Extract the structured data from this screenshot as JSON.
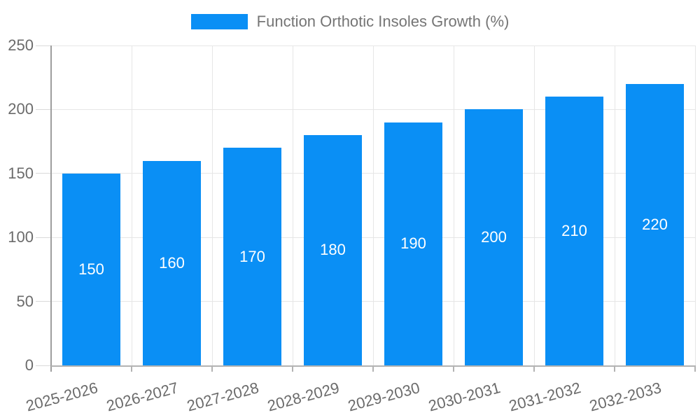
{
  "chart_data": {
    "type": "bar",
    "title": "",
    "legend": "Function Orthotic Insoles Growth (%)",
    "legend_position": "top",
    "categories": [
      "2025-2026",
      "2026-2027",
      "2027-2028",
      "2028-2029",
      "2029-2030",
      "2030-2031",
      "2031-2032",
      "2032-2033"
    ],
    "values": [
      150,
      160,
      170,
      180,
      190,
      200,
      210,
      220
    ],
    "xlabel": "",
    "ylabel": "",
    "ylim": [
      0,
      250
    ],
    "yticks": [
      0,
      50,
      100,
      150,
      200,
      250
    ],
    "grid": true,
    "bar_labels_shown": true,
    "x_labels_rotated_deg": -15
  },
  "colors": {
    "bar": "#0a8ff5",
    "bar_label": "#ffffff",
    "axis_text": "#6b6b6b",
    "legend_text": "#757575",
    "grid_line": "#e6e6e6",
    "tick_line": "#d9d9d9",
    "axis_line": "#9e9e9e",
    "baseline": "#b3b3b3",
    "background": "#ffffff"
  }
}
